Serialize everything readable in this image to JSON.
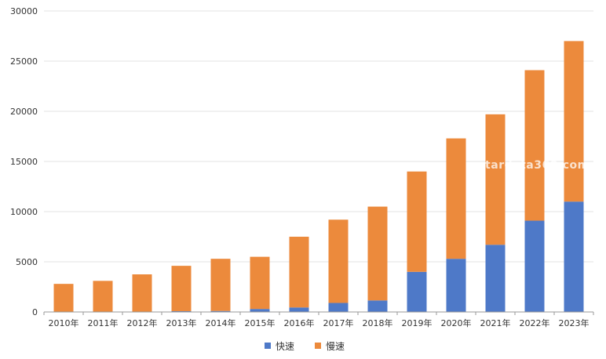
{
  "chart_data": {
    "type": "bar",
    "stacked": true,
    "categories": [
      "2010年",
      "2011年",
      "2012年",
      "2013年",
      "2014年",
      "2015年",
      "2016年",
      "2017年",
      "2018年",
      "2019年",
      "2020年",
      "2021年",
      "2022年",
      "2023年"
    ],
    "series": [
      {
        "name": "快速",
        "color": "#4e79c8",
        "values": [
          0,
          0,
          0,
          80,
          100,
          300,
          450,
          900,
          1150,
          4000,
          5300,
          6700,
          9100,
          11000
        ]
      },
      {
        "name": "慢速",
        "color": "#ec8a3c",
        "values": [
          2800,
          3100,
          3750,
          4520,
          5200,
          5200,
          7050,
          8300,
          9350,
          10000,
          12000,
          13000,
          15000,
          16000
        ]
      }
    ],
    "ylim": [
      0,
      30000
    ],
    "yticks": [
      0,
      5000,
      10000,
      15000,
      20000,
      25000,
      30000
    ],
    "grid": true,
    "legend_position": "bottom-center",
    "title": "",
    "xlabel": "",
    "ylabel": ""
  },
  "watermark": "stardata360.com"
}
